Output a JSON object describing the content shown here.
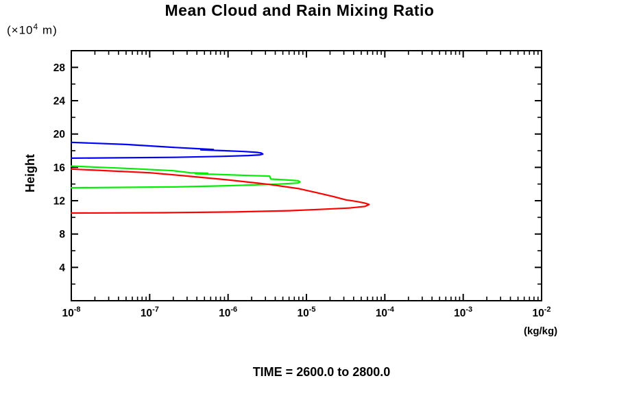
{
  "header": {
    "title": "Mean Cloud and Rain Mixing Ratio"
  },
  "axes": {
    "y_label": "Height",
    "y_unit_prefix": "(×10",
    "y_unit_exponent": "4",
    "y_unit_suffix": " m)",
    "x_unit": "(kg/kg)"
  },
  "footer": {
    "time_annotation": "TIME = 2600.0 to 2800.0"
  },
  "chart_data": {
    "type": "line",
    "title": "Mean Cloud and Rain Mixing Ratio",
    "xlabel": "(kg/kg)",
    "ylabel": "Height (x10^4 m)",
    "x_scale": "log",
    "x_log_min": -8,
    "x_log_max": -2,
    "x_tick_exponents": [
      -8,
      -7,
      -6,
      -5,
      -4,
      -3,
      -2
    ],
    "ylim": [
      0,
      30
    ],
    "y_major_ticks": [
      4,
      8,
      12,
      16,
      20,
      24,
      28
    ],
    "y_minor_tick_step": 2,
    "grid": false,
    "legend": "none",
    "annotation": "TIME = 2600.0 to 2800.0",
    "frame_color": "#000000",
    "series": [
      {
        "name": "blue-contour",
        "color": "#0000ff",
        "points": [
          [
            1e-08,
            19.0
          ],
          [
            5e-08,
            18.75
          ],
          [
            2e-07,
            18.4
          ],
          [
            4e-07,
            18.25
          ],
          [
            6.5e-07,
            18.15
          ],
          [
            4.5e-07,
            18.1
          ],
          [
            9e-07,
            18.0
          ],
          [
            1.6e-06,
            17.9
          ],
          [
            2.3e-06,
            17.8
          ],
          [
            2.65e-06,
            17.72
          ],
          [
            2.78e-06,
            17.6
          ],
          [
            2.55e-06,
            17.5
          ],
          [
            1.8e-06,
            17.42
          ],
          [
            8e-07,
            17.32
          ],
          [
            2e-07,
            17.2
          ],
          [
            1e-08,
            17.1
          ]
        ]
      },
      {
        "name": "green-contour",
        "color": "#00ee00",
        "points": [
          [
            1e-08,
            16.15
          ],
          [
            6e-08,
            15.85
          ],
          [
            2e-07,
            15.6
          ],
          [
            3.3e-07,
            15.35
          ],
          [
            5.5e-07,
            15.3
          ],
          [
            3.8e-07,
            15.25
          ],
          [
            9e-07,
            15.12
          ],
          [
            2e-06,
            15.02
          ],
          [
            3.4e-06,
            14.95
          ],
          [
            3.5e-06,
            14.6
          ],
          [
            5.5e-06,
            14.5
          ],
          [
            7.8e-06,
            14.4
          ],
          [
            8.3e-06,
            14.25
          ],
          [
            7.8e-06,
            14.12
          ],
          [
            4.5e-06,
            14.0
          ],
          [
            1e-06,
            13.8
          ],
          [
            2e-07,
            13.65
          ],
          [
            1e-08,
            13.55
          ]
        ]
      },
      {
        "name": "red-contour",
        "color": "#ff0000",
        "points": [
          [
            1e-08,
            15.8
          ],
          [
            1e-07,
            15.35
          ],
          [
            2.7e-07,
            15.0
          ],
          [
            1e-06,
            14.5
          ],
          [
            3.4e-06,
            13.95
          ],
          [
            8e-06,
            13.45
          ],
          [
            1.3e-05,
            13.0
          ],
          [
            2.2e-05,
            12.5
          ],
          [
            2.9e-05,
            12.2
          ],
          [
            3.2e-05,
            12.1
          ],
          [
            4.4e-05,
            11.9
          ],
          [
            5.6e-05,
            11.7
          ],
          [
            6.3e-05,
            11.55
          ],
          [
            5.6e-05,
            11.32
          ],
          [
            3.5e-05,
            11.12
          ],
          [
            1.4e-05,
            10.95
          ],
          [
            6e-06,
            10.8
          ],
          [
            1.2e-06,
            10.65
          ],
          [
            1.5e-07,
            10.56
          ],
          [
            1e-08,
            10.52
          ]
        ]
      }
    ]
  }
}
